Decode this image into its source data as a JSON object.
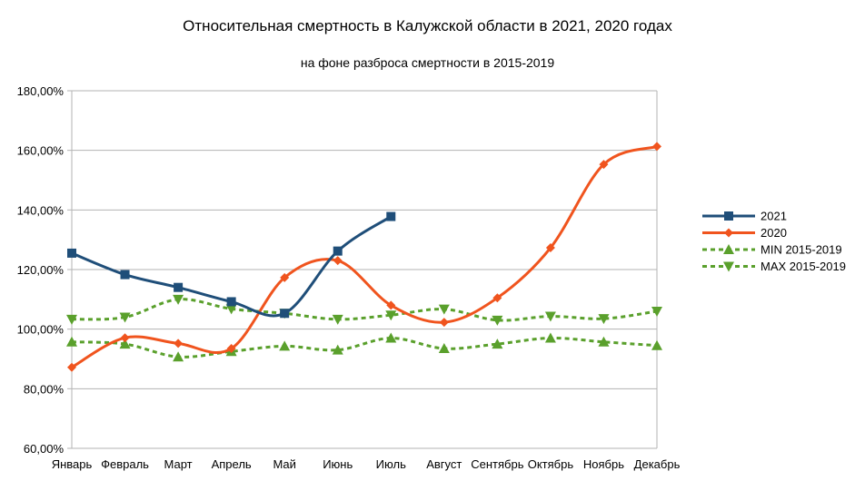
{
  "chart_data": {
    "type": "line",
    "title": "Относительная смертность в Калужской области в 2021, 2020 годах",
    "subtitle": "на фоне разброса смертности в 2015-2019",
    "categories": [
      "Январь",
      "Февраль",
      "Март",
      "Апрель",
      "Май",
      "Июнь",
      "Июль",
      "Август",
      "Сентябрь",
      "Октябрь",
      "Ноябрь",
      "Декабрь"
    ],
    "ylim": [
      0.6,
      1.8
    ],
    "yticks": [
      0.6,
      0.8,
      1.0,
      1.2,
      1.4,
      1.6,
      1.8
    ],
    "ytick_labels": [
      "60,00%",
      "80,00%",
      "100,00%",
      "120,00%",
      "140,00%",
      "160,00%",
      "180,00%"
    ],
    "grid": true,
    "legend_position": "right",
    "series": [
      {
        "name": "2021",
        "color": "#1f4e79",
        "style": "solid",
        "marker": "square",
        "values": [
          1.255,
          1.183,
          1.14,
          1.092,
          1.053,
          1.262,
          1.378,
          null,
          null,
          null,
          null,
          null
        ]
      },
      {
        "name": "2020",
        "color": "#f0541e",
        "style": "solid",
        "marker": "diamond",
        "values": [
          0.872,
          0.971,
          0.952,
          0.935,
          1.173,
          1.23,
          1.08,
          1.023,
          1.105,
          1.273,
          1.553,
          1.613
        ]
      },
      {
        "name": "MIN 2015-2019",
        "color": "#5aa02c",
        "style": "dashed",
        "marker": "triangle-up",
        "values": [
          0.957,
          0.95,
          0.907,
          0.925,
          0.943,
          0.93,
          0.97,
          0.935,
          0.95,
          0.97,
          0.957,
          0.945
        ]
      },
      {
        "name": "MAX 2015-2019",
        "color": "#5aa02c",
        "style": "dashed",
        "marker": "triangle-down",
        "values": [
          1.033,
          1.04,
          1.1,
          1.068,
          1.053,
          1.033,
          1.047,
          1.067,
          1.03,
          1.043,
          1.035,
          1.06
        ]
      }
    ]
  }
}
